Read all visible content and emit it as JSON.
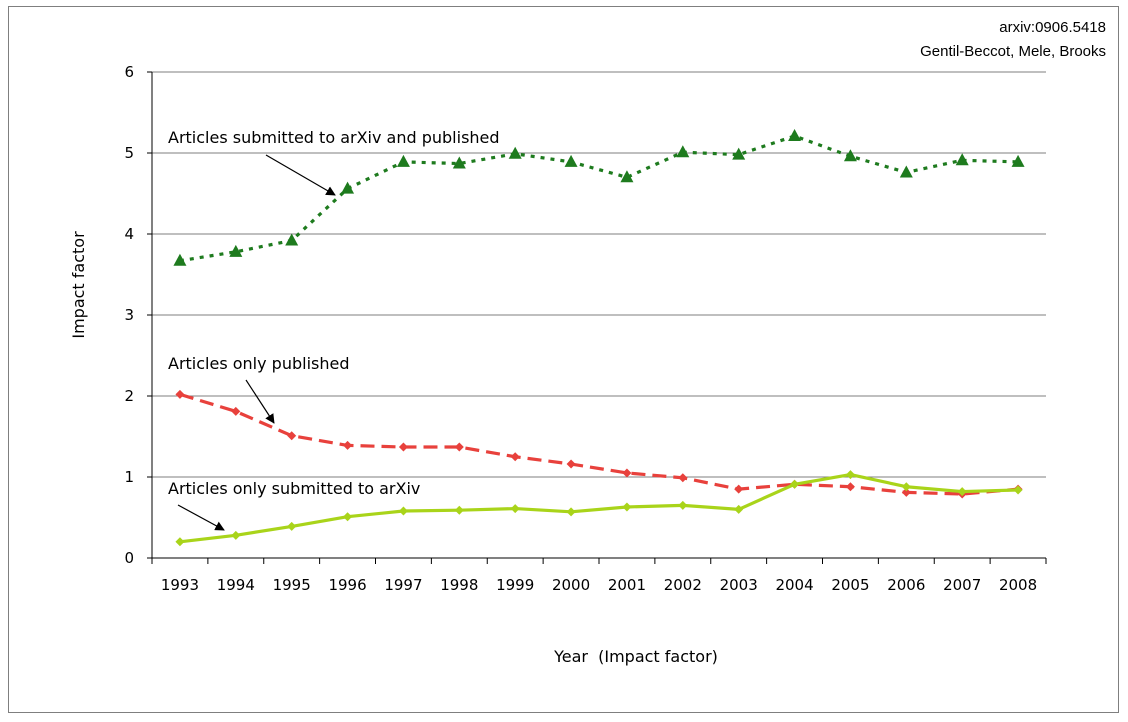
{
  "credit": {
    "line1": "arxiv:0906.5418",
    "line2": "Gentil-Beccot, Mele, Brooks"
  },
  "chart_data": {
    "type": "line",
    "title": "",
    "xlabel": "Year  (Impact factor)",
    "ylabel": "Impact factor",
    "ylim": [
      0,
      6
    ],
    "yticks": [
      "0",
      "1",
      "2",
      "3",
      "4",
      "5",
      "6"
    ],
    "grid": "horizontal",
    "categories": [
      "1993",
      "1994",
      "1995",
      "1996",
      "1997",
      "1998",
      "1999",
      "2000",
      "2001",
      "2002",
      "2003",
      "2004",
      "2005",
      "2006",
      "2007",
      "2008"
    ],
    "series": [
      {
        "name": "Articles submitted to arXiv and published",
        "color": "#1e7b1e",
        "style": "dotted",
        "marker": "triangle",
        "values": [
          3.67,
          3.78,
          3.92,
          4.56,
          4.89,
          4.87,
          4.99,
          4.89,
          4.7,
          5.01,
          4.98,
          5.21,
          4.96,
          4.76,
          4.91,
          4.89
        ]
      },
      {
        "name": "Articles only published",
        "color": "#e8413c",
        "style": "dashed",
        "marker": "diamond",
        "values": [
          2.02,
          1.81,
          1.51,
          1.39,
          1.37,
          1.37,
          1.25,
          1.16,
          1.05,
          0.99,
          0.85,
          0.91,
          0.88,
          0.81,
          0.79,
          0.85
        ]
      },
      {
        "name": "Articles only submitted to arXiv",
        "color": "#a9d41a",
        "style": "solid",
        "marker": "diamond",
        "values": [
          0.2,
          0.28,
          0.39,
          0.51,
          0.58,
          0.59,
          0.61,
          0.57,
          0.63,
          0.65,
          0.6,
          0.91,
          1.03,
          0.88,
          0.82,
          0.84
        ]
      }
    ]
  }
}
